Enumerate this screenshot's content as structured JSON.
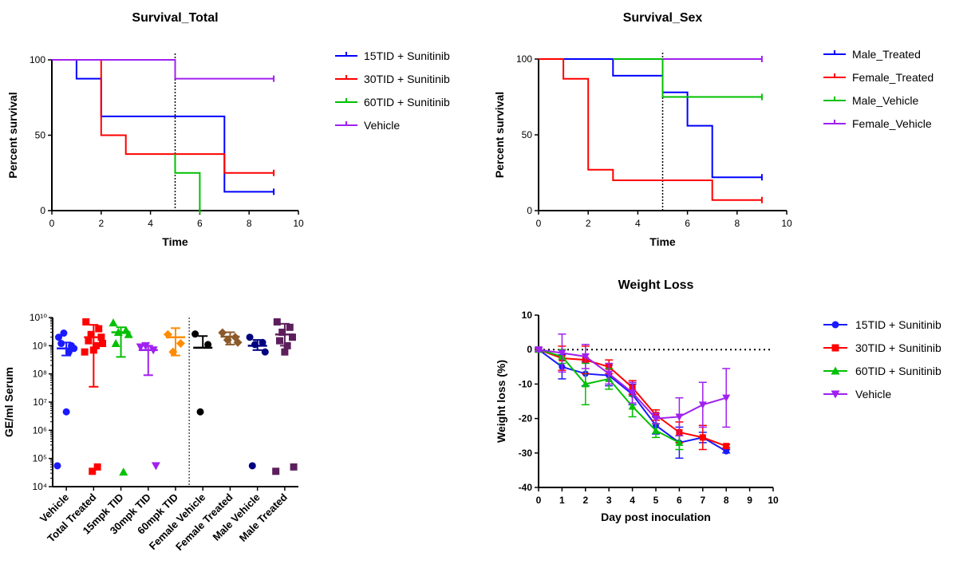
{
  "chart_data": [
    {
      "type": "line",
      "title": "Survival_Total",
      "xlabel": "Time",
      "ylabel": "Percent survival",
      "xlim": [
        0,
        10
      ],
      "ylim": [
        0,
        100
      ],
      "xticks": [
        "0",
        "2",
        "4",
        "6",
        "8",
        "10"
      ],
      "yticks": [
        "0",
        "50",
        "100"
      ],
      "vline_x": 5,
      "legend_position": "right",
      "series": [
        {
          "name": "15TID + Sunitinib",
          "color": "#0000ff",
          "steps": [
            [
              0,
              100
            ],
            [
              1,
              87.5
            ],
            [
              2,
              62.5
            ],
            [
              7,
              12.5
            ],
            [
              9,
              12.5
            ]
          ]
        },
        {
          "name": "30TID + Sunitinib",
          "color": "#ff0000",
          "steps": [
            [
              0,
              100
            ],
            [
              2,
              50
            ],
            [
              3,
              37.5
            ],
            [
              7,
              25
            ],
            [
              9,
              25
            ]
          ]
        },
        {
          "name": "60TID + Sunitinib",
          "color": "#00c000",
          "steps": [
            [
              5,
              37.5
            ],
            [
              5,
              25
            ],
            [
              6,
              0
            ],
            [
              6,
              0
            ]
          ]
        },
        {
          "name": "Vehicle",
          "color": "#a020f0",
          "steps": [
            [
              0,
              100
            ],
            [
              5,
              87.5
            ],
            [
              9,
              87.5
            ]
          ]
        }
      ]
    },
    {
      "type": "line",
      "title": "Survival_Sex",
      "xlabel": "Time",
      "ylabel": "Percent survival",
      "xlim": [
        0,
        10
      ],
      "ylim": [
        0,
        100
      ],
      "xticks": [
        "0",
        "2",
        "4",
        "6",
        "8",
        "10"
      ],
      "yticks": [
        "0",
        "50",
        "100"
      ],
      "vline_x": 5,
      "legend_position": "right",
      "series": [
        {
          "name": "Male_Treated",
          "color": "#0000ff",
          "steps": [
            [
              0,
              100
            ],
            [
              3,
              89
            ],
            [
              5,
              78
            ],
            [
              6,
              56
            ],
            [
              7,
              22
            ],
            [
              9,
              22
            ]
          ]
        },
        {
          "name": "Female_Treated",
          "color": "#ff0000",
          "steps": [
            [
              0,
              100
            ],
            [
              1,
              87
            ],
            [
              2,
              27
            ],
            [
              3,
              20
            ],
            [
              7,
              7
            ],
            [
              9,
              7
            ]
          ]
        },
        {
          "name": "Male_Vehicle",
          "color": "#00c000",
          "steps": [
            [
              3,
              100
            ],
            [
              5,
              75
            ],
            [
              9,
              75
            ]
          ]
        },
        {
          "name": "Female_Vehicle",
          "color": "#a020f0",
          "steps": [
            [
              5,
              100
            ],
            [
              9,
              100
            ]
          ]
        }
      ]
    },
    {
      "type": "scatter",
      "title": "",
      "ylabel": "GE/ml Serum",
      "yscale": "log",
      "ylim": [
        10000,
        10000000000
      ],
      "ytick_values": [
        10000,
        100000,
        1000000,
        10000000,
        100000000,
        1000000000,
        10000000000
      ],
      "yticks": [
        "10⁴",
        "10⁵",
        "10⁶",
        "10⁷",
        "10⁸",
        "10⁹",
        "10¹⁰"
      ],
      "categories": [
        "Vehicle",
        "Total Treated",
        "15mpk TID",
        "30mpk TID",
        "60mpk TID",
        "Female Vehicle",
        "Female Treated",
        "Male Vehicle",
        "Male Treated"
      ],
      "divider_after_index": 4,
      "groups": [
        {
          "category": "Vehicle",
          "color": "#1a1aff",
          "marker": "circle",
          "points": [
            2000000000,
            1000000000,
            2800000000,
            800000000,
            1200000000,
            600000000,
            4500000,
            55000
          ],
          "mean": 800000000,
          "err": [
            450000000,
            1300000000
          ]
        },
        {
          "category": "Total Treated",
          "color": "#ff0000",
          "marker": "square",
          "points": [
            7000000000,
            4000000000,
            2500000000,
            2000000000,
            1500000000,
            1000000000,
            700000000,
            600000000,
            1200000000,
            35000,
            50000
          ],
          "mean": 2000000000,
          "err": [
            35000000,
            5500000000
          ]
        },
        {
          "category": "15mpk TID",
          "color": "#00c000",
          "marker": "triangle-up",
          "points": [
            6500000000,
            3500000000,
            3000000000,
            2500000000,
            1200000000,
            33000
          ],
          "mean": 3000000000,
          "err": [
            400000000,
            4500000000
          ]
        },
        {
          "category": "30mpk TID",
          "color": "#a020f0",
          "marker": "triangle-down",
          "points": [
            900000000,
            700000000,
            1000000000,
            55000
          ],
          "mean": 700000000,
          "err": [
            90000000,
            1000000000
          ]
        },
        {
          "category": "60mpk TID",
          "color": "#ff8c00",
          "marker": "diamond",
          "points": [
            2500000000,
            1200000000,
            600000000
          ],
          "mean": 2000000000,
          "err": [
            450000000,
            4200000000
          ]
        },
        {
          "category": "Female Vehicle",
          "color": "#000000",
          "marker": "circle",
          "points": [
            2600000000,
            1100000000,
            4500000
          ],
          "mean": 850000000,
          "err": [
            850000000,
            2200000000
          ]
        },
        {
          "category": "Female Treated",
          "color": "#8b5a2b",
          "marker": "diamond",
          "points": [
            2900000000,
            2000000000,
            1600000000,
            1300000000
          ],
          "mean": 2100000000,
          "err": [
            1100000000,
            3000000000
          ]
        },
        {
          "category": "Male Vehicle",
          "color": "#000080",
          "marker": "circle",
          "points": [
            2000000000,
            1300000000,
            1100000000,
            600000000,
            55000
          ],
          "mean": 1000000000,
          "err": [
            700000000,
            1600000000
          ]
        },
        {
          "category": "Male Treated",
          "color": "#5c1f5c",
          "marker": "square",
          "points": [
            7000000000,
            4500000000,
            3000000000,
            2000000000,
            1500000000,
            1000000000,
            600000000,
            35000,
            50000
          ],
          "mean": 2500000000,
          "err": [
            1000000000,
            6000000000
          ]
        }
      ]
    },
    {
      "type": "line",
      "title": "Weight Loss",
      "xlabel": "Day post inoculation",
      "ylabel": "Weight loss (%)",
      "xlim": [
        0,
        10
      ],
      "ylim": [
        -40,
        10
      ],
      "xticks": [
        "0",
        "1",
        "2",
        "3",
        "4",
        "5",
        "6",
        "7",
        "8",
        "9",
        "10"
      ],
      "yticks": [
        "-40",
        "-30",
        "-20",
        "-10",
        "0",
        "10"
      ],
      "hline_y": 0,
      "legend_position": "right",
      "series": [
        {
          "name": "15TID + Sunitinib",
          "color": "#1a1aff",
          "marker": "circle",
          "x": [
            0,
            1,
            2,
            3,
            4,
            5,
            6,
            7,
            8
          ],
          "y": [
            0,
            -5,
            -7,
            -7.5,
            -13,
            -22,
            -27,
            -25.5,
            -29.5
          ],
          "err": [
            0.5,
            3.5,
            3.5,
            3,
            3,
            2.5,
            4.5,
            1.5,
            0.5
          ]
        },
        {
          "name": "30TID + Sunitinib",
          "color": "#ff0000",
          "marker": "square",
          "x": [
            0,
            1,
            2,
            3,
            4,
            5,
            6,
            7,
            8
          ],
          "y": [
            0,
            -2.5,
            -3,
            -5,
            -11,
            -19,
            -24,
            -25.5,
            -28
          ],
          "err": [
            0.5,
            3.5,
            4,
            2,
            2,
            1.5,
            3,
            3.5,
            0.5
          ]
        },
        {
          "name": "60TID + Sunitinib",
          "color": "#00c000",
          "marker": "triangle-up",
          "x": [
            0,
            1,
            2,
            3,
            4,
            5,
            6
          ],
          "y": [
            0,
            -2,
            -10,
            -8.5,
            -16.5,
            -23.5,
            -27
          ],
          "err": [
            0.5,
            2,
            6,
            3,
            3,
            2,
            2
          ]
        },
        {
          "name": "Vehicle",
          "color": "#a020f0",
          "marker": "triangle-down",
          "x": [
            0,
            1,
            2,
            3,
            4,
            5,
            6,
            7,
            8
          ],
          "y": [
            0,
            -1,
            -2,
            -7,
            -12.5,
            -20,
            -19.5,
            -16,
            -14
          ],
          "err": [
            0.5,
            5.5,
            3.5,
            3,
            3,
            1.5,
            5.5,
            6.5,
            8.5
          ]
        }
      ]
    }
  ]
}
